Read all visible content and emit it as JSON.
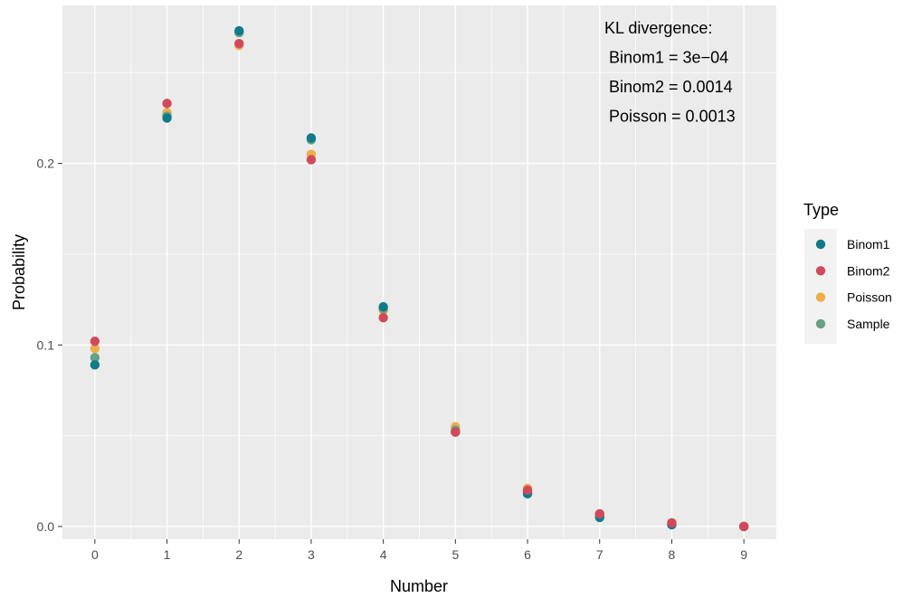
{
  "chart_data": {
    "type": "scatter",
    "xlabel": "Number",
    "ylabel": "Probability",
    "x": [
      0,
      1,
      2,
      3,
      4,
      5,
      6,
      7,
      8,
      9
    ],
    "xlim": [
      -0.45,
      9.45
    ],
    "ylim": [
      -0.007,
      0.287
    ],
    "x_ticks": [
      "0",
      "1",
      "2",
      "3",
      "4",
      "5",
      "6",
      "7",
      "8",
      "9"
    ],
    "y_ticks": [
      {
        "value": 0.0,
        "label": "0.0"
      },
      {
        "value": 0.1,
        "label": "0.1"
      },
      {
        "value": 0.2,
        "label": "0.2"
      }
    ],
    "grid": true,
    "legend": {
      "title": "Type",
      "placement": "right",
      "entries": [
        {
          "name": "Binom1",
          "color": "#0f7b8a"
        },
        {
          "name": "Binom2",
          "color": "#d1495b"
        },
        {
          "name": "Poisson",
          "color": "#edae49"
        },
        {
          "name": "Sample",
          "color": "#66a182"
        }
      ]
    },
    "draw_order": [
      "Poisson",
      "Sample",
      "Binom1",
      "Binom2"
    ],
    "series": [
      {
        "name": "Binom1",
        "values": [
          0.089,
          0.225,
          0.273,
          0.214,
          0.121,
          0.052,
          0.018,
          0.005,
          0.001,
          0.0
        ]
      },
      {
        "name": "Binom2",
        "values": [
          0.102,
          0.233,
          0.266,
          0.202,
          0.115,
          0.052,
          0.02,
          0.007,
          0.002,
          0.0
        ]
      },
      {
        "name": "Poisson",
        "values": [
          0.098,
          0.228,
          0.265,
          0.205,
          0.119,
          0.055,
          0.021,
          0.007,
          0.002,
          0.0
        ]
      },
      {
        "name": "Sample",
        "values": [
          0.093,
          0.226,
          0.272,
          0.213,
          0.12,
          0.053,
          0.019,
          0.006,
          0.001,
          0.0
        ]
      }
    ],
    "annotation": {
      "lines": [
        "KL divergence:",
        " Binom1 = 3e−04",
        " Binom2 = 0.0014",
        " Poisson = 0.0013"
      ]
    }
  }
}
